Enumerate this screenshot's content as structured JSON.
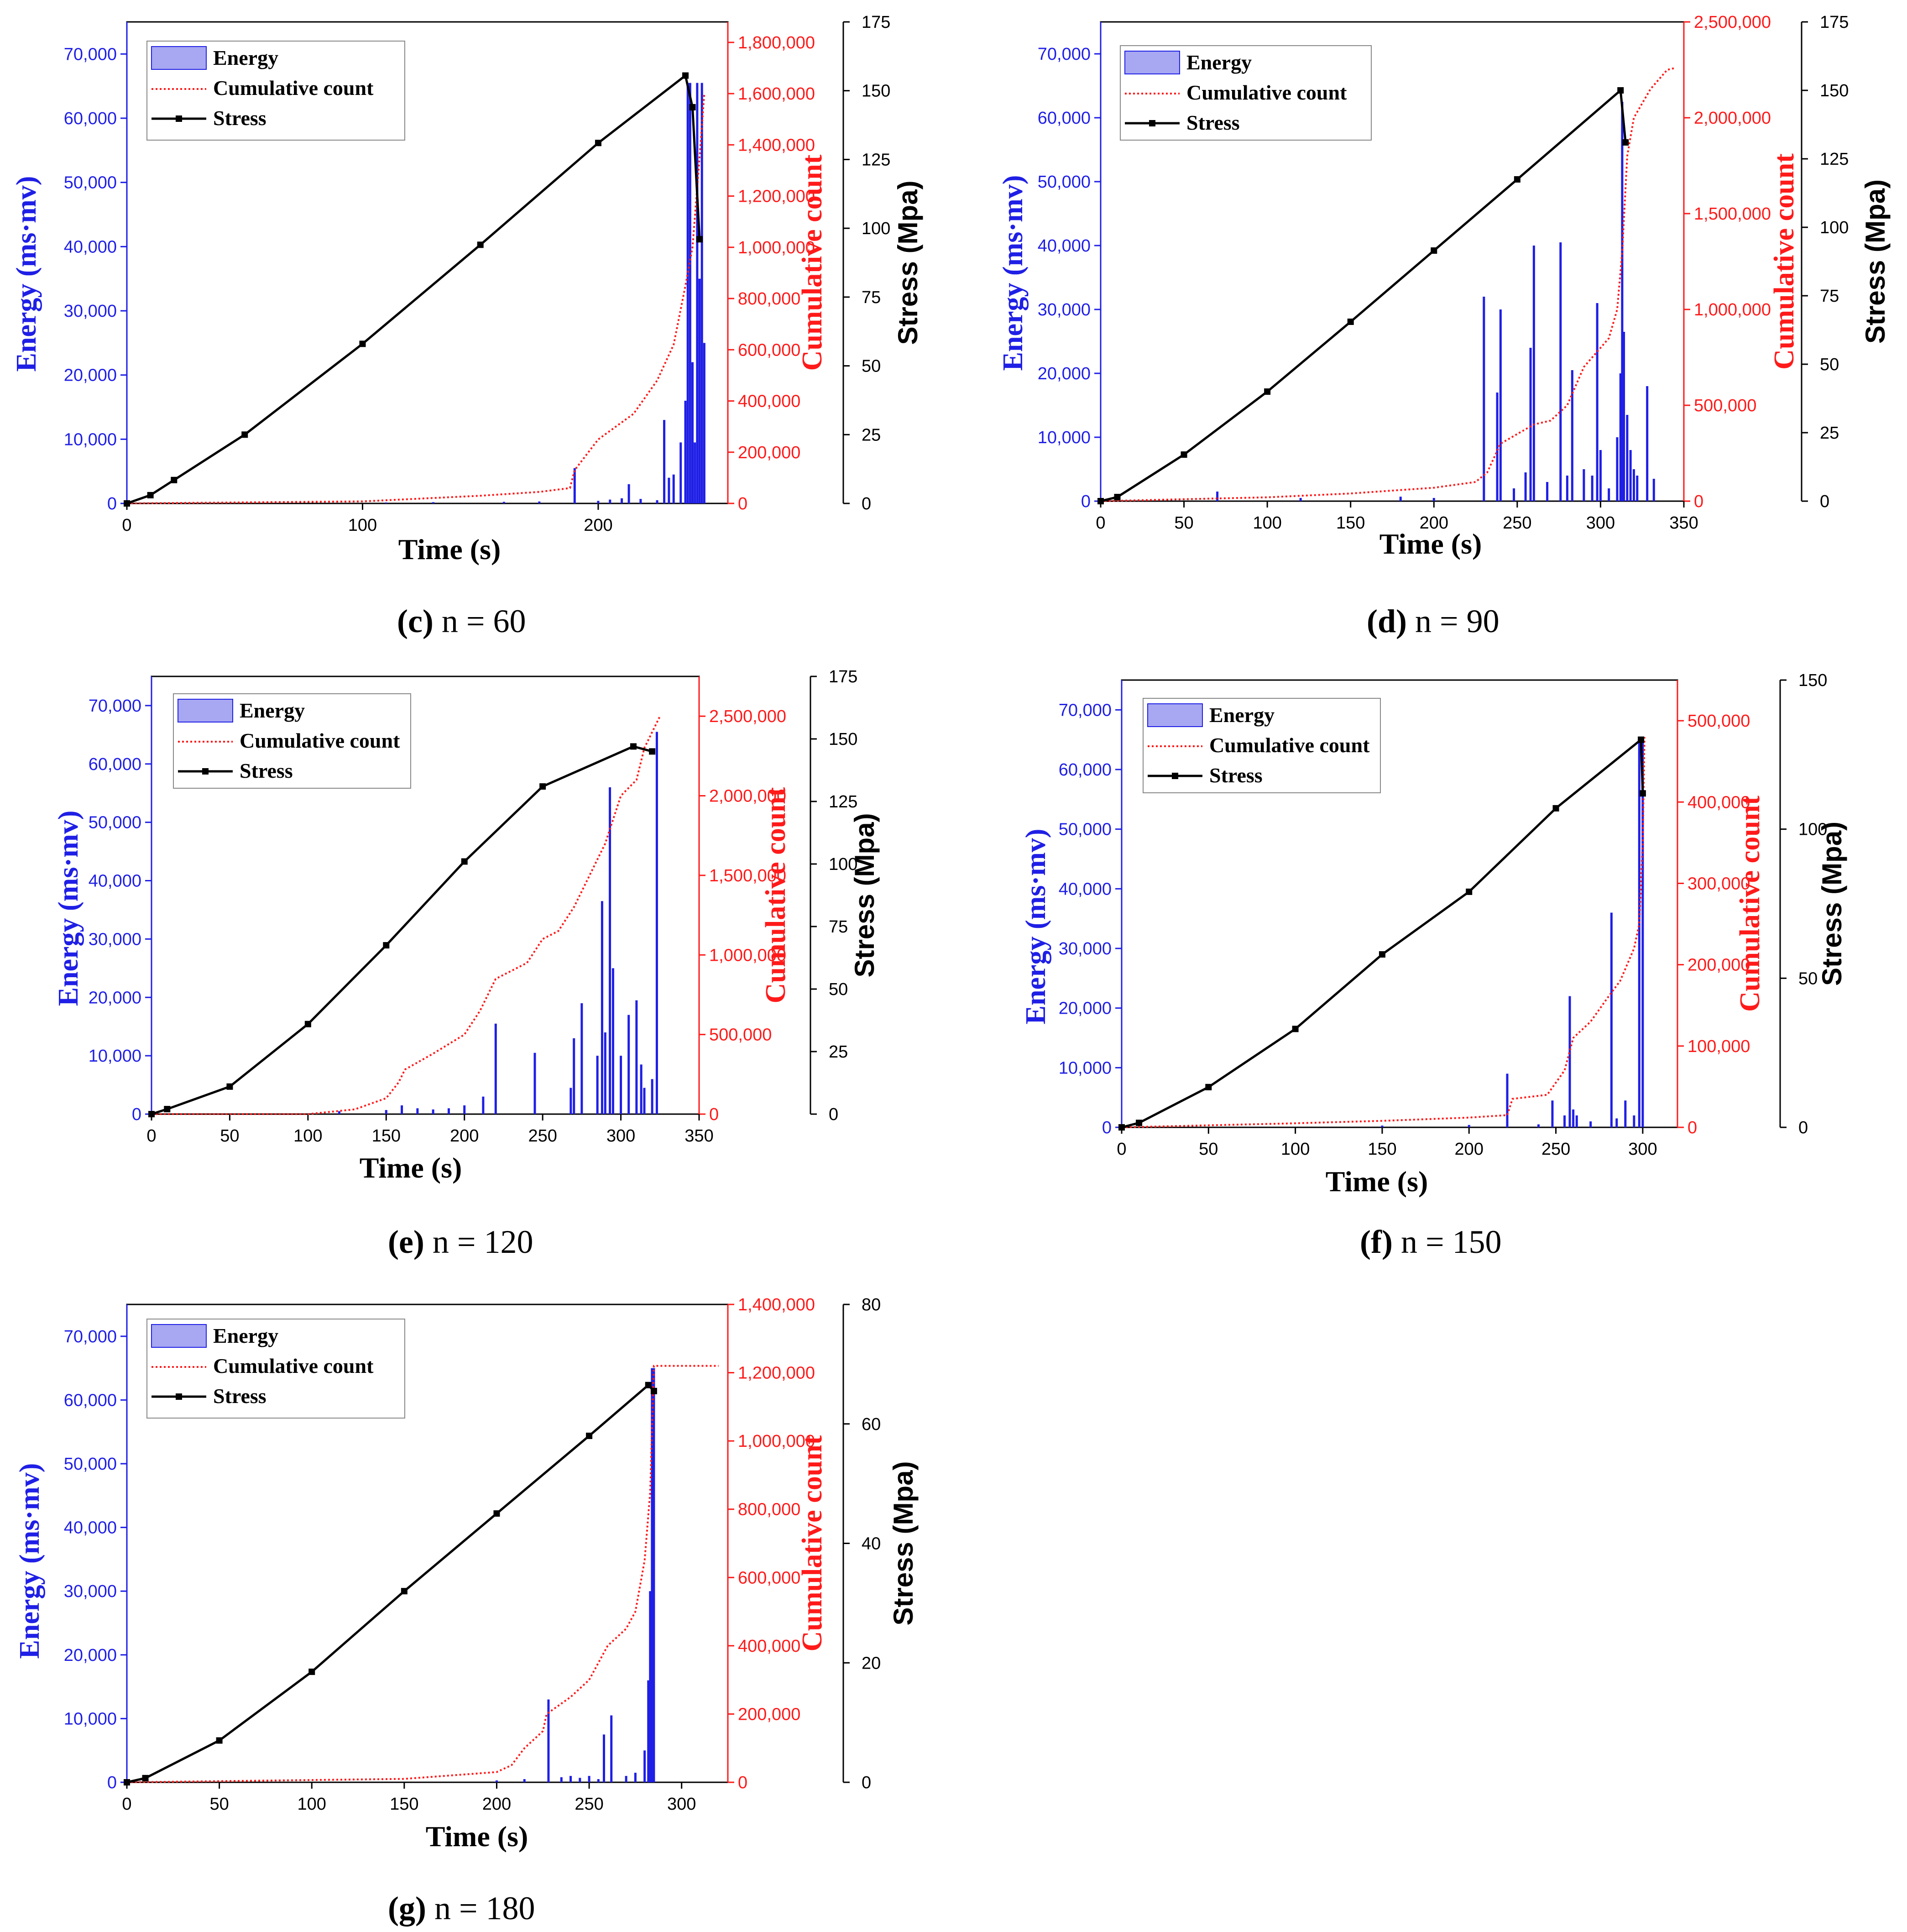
{
  "colors": {
    "energy": "#1f1fe6",
    "energy_fill": "#a7a7f2",
    "cumulative": "#ff1a1a",
    "stress": "#000000"
  },
  "legend": {
    "energy": "Energy",
    "cumulative": "Cumulative count",
    "stress": "Stress"
  },
  "chart_data": [
    {
      "id": "c",
      "type": "combo",
      "caption_letter": "(c)",
      "caption_text": " n = 60",
      "xlabel": "Time (s)",
      "ylabel_energy": "Energy (ms·mv)",
      "ylabel_count": "Cumulative count",
      "ylabel_stress": "Stress (Mpa)",
      "xlim": [
        0,
        255
      ],
      "xticks": [
        0,
        100,
        200
      ],
      "xtick_labels": [
        "0",
        "100",
        "200"
      ],
      "energy_lim": [
        0,
        75000
      ],
      "energy_ticks": [
        0,
        10000,
        20000,
        30000,
        40000,
        50000,
        60000,
        70000
      ],
      "energy_tick_labels": [
        "0",
        "10,000",
        "20,000",
        "30,000",
        "40,000",
        "50,000",
        "60,000",
        "70,000"
      ],
      "count_lim": [
        0,
        1880000
      ],
      "count_ticks": [
        0,
        200000,
        400000,
        600000,
        800000,
        1000000,
        1200000,
        1400000,
        1600000,
        1800000
      ],
      "count_tick_labels": [
        "0",
        "200,000",
        "400,000",
        "600,000",
        "800,000",
        "1,000,000",
        "1,200,000",
        "1,400,000",
        "1,600,000",
        "1,800,000"
      ],
      "stress_lim": [
        0,
        175
      ],
      "stress_ticks": [
        0,
        25,
        50,
        75,
        100,
        125,
        150,
        175
      ],
      "stress_tick_labels": [
        "0",
        "25",
        "50",
        "75",
        "100",
        "125",
        "150",
        "175"
      ],
      "stress": {
        "x": [
          0,
          10,
          20,
          50,
          100,
          150,
          200,
          237,
          240,
          243
        ],
        "y": [
          0,
          3,
          8.5,
          25,
          58,
          94,
          131,
          155.5,
          144,
          96
        ]
      },
      "cumulative": {
        "x": [
          0,
          100,
          150,
          175,
          188,
          190,
          200,
          215,
          225,
          232,
          237,
          240,
          243,
          245
        ],
        "y": [
          0,
          8000,
          30000,
          45000,
          60000,
          130000,
          250000,
          350000,
          480000,
          620000,
          850000,
          1000000,
          1350000,
          1600000
        ]
      },
      "energy": {
        "x": [
          110,
          130,
          160,
          175,
          190,
          200,
          205,
          210,
          213,
          218,
          225,
          228,
          230,
          232,
          235,
          237,
          238,
          239,
          240,
          241,
          242,
          243,
          244,
          245
        ],
        "y": [
          150,
          200,
          250,
          300,
          5500,
          400,
          600,
          800,
          3000,
          700,
          500,
          13000,
          4000,
          4500,
          9500,
          16000,
          65500,
          65500,
          22000,
          9500,
          65500,
          35000,
          65500,
          25000
        ]
      }
    },
    {
      "id": "d",
      "type": "combo",
      "caption_letter": "(d)",
      "caption_text": " n = 90",
      "xlabel": "Time (s)",
      "ylabel_energy": "Energy (ms·mv)",
      "ylabel_count": "Cumulative count",
      "ylabel_stress": "Stress (Mpa)",
      "xlim": [
        0,
        350
      ],
      "xticks": [
        0,
        50,
        100,
        150,
        200,
        250,
        300,
        350
      ],
      "xtick_labels": [
        "0",
        "50",
        "100",
        "150",
        "200",
        "250",
        "300",
        "350"
      ],
      "energy_lim": [
        0,
        75000
      ],
      "energy_ticks": [
        0,
        10000,
        20000,
        30000,
        40000,
        50000,
        60000,
        70000
      ],
      "energy_tick_labels": [
        "0",
        "10,000",
        "20,000",
        "30,000",
        "40,000",
        "50,000",
        "60,000",
        "70,000"
      ],
      "count_lim": [
        0,
        2500000
      ],
      "count_ticks": [
        0,
        500000,
        1000000,
        1500000,
        2000000,
        2500000
      ],
      "count_tick_labels": [
        "0",
        "500,000",
        "1,000,000",
        "1,500,000",
        "2,000,000",
        "2,500,000"
      ],
      "stress_lim": [
        0,
        175
      ],
      "stress_ticks": [
        0,
        25,
        50,
        75,
        100,
        125,
        150,
        175
      ],
      "stress_tick_labels": [
        "0",
        "25",
        "50",
        "75",
        "100",
        "125",
        "150",
        "175"
      ],
      "stress": {
        "x": [
          0,
          10,
          50,
          100,
          150,
          200,
          250,
          312,
          315
        ],
        "y": [
          0,
          1.5,
          17,
          40,
          65.5,
          91.5,
          117.5,
          150,
          131
        ]
      },
      "cumulative": {
        "x": [
          0,
          100,
          150,
          200,
          225,
          232,
          240,
          250,
          260,
          270,
          280,
          290,
          300,
          305,
          310,
          313,
          316,
          320,
          330,
          340,
          345
        ],
        "y": [
          0,
          20000,
          40000,
          70000,
          100000,
          150000,
          300000,
          350000,
          400000,
          420000,
          500000,
          700000,
          800000,
          850000,
          1000000,
          1300000,
          1800000,
          2000000,
          2150000,
          2250000,
          2260000
        ]
      },
      "energy": {
        "x": [
          70,
          120,
          180,
          200,
          230,
          238,
          240,
          248,
          255,
          258,
          260,
          268,
          276,
          280,
          283,
          290,
          295,
          298,
          300,
          305,
          310,
          312,
          313,
          314,
          316,
          318,
          320,
          322,
          328,
          332
        ],
        "y": [
          1500,
          500,
          700,
          500,
          32000,
          17000,
          30000,
          2000,
          4500,
          24000,
          40000,
          3000,
          40500,
          4000,
          20500,
          5000,
          4000,
          31000,
          8000,
          2000,
          10000,
          20000,
          62500,
          26500,
          13500,
          8000,
          5000,
          4000,
          18000,
          3500
        ]
      }
    },
    {
      "id": "e",
      "type": "combo",
      "caption_letter": "(e)",
      "caption_text": " n = 120",
      "xlabel": "Time (s)",
      "ylabel_energy": "Energy (ms·mv)",
      "ylabel_count": "Cumulative count",
      "ylabel_stress": "Stress (Mpa)",
      "xlim": [
        0,
        350
      ],
      "xticks": [
        0,
        50,
        100,
        150,
        200,
        250,
        300,
        350
      ],
      "xtick_labels": [
        "0",
        "50",
        "100",
        "150",
        "200",
        "250",
        "300",
        "350"
      ],
      "energy_lim": [
        0,
        75000
      ],
      "energy_ticks": [
        0,
        10000,
        20000,
        30000,
        40000,
        50000,
        60000,
        70000
      ],
      "energy_tick_labels": [
        "0",
        "10,000",
        "20,000",
        "30,000",
        "40,000",
        "50,000",
        "60,000",
        "70,000"
      ],
      "count_lim": [
        0,
        2750000
      ],
      "count_ticks": [
        0,
        500000,
        1000000,
        1500000,
        2000000,
        2500000
      ],
      "count_tick_labels": [
        "0",
        "500,000",
        "1,000,000",
        "1,500,000",
        "2,000,000",
        "2,500,000"
      ],
      "stress_lim": [
        0,
        175
      ],
      "stress_ticks": [
        0,
        25,
        50,
        75,
        100,
        125,
        150,
        175
      ],
      "stress_tick_labels": [
        "0",
        "25",
        "50",
        "75",
        "100",
        "125",
        "150",
        "175"
      ],
      "stress": {
        "x": [
          0,
          10,
          50,
          100,
          150,
          200,
          250,
          308,
          320
        ],
        "y": [
          0,
          2,
          11,
          36,
          67.5,
          101,
          131,
          147,
          145
        ]
      },
      "cumulative": {
        "x": [
          0,
          100,
          130,
          150,
          158,
          162,
          180,
          200,
          210,
          220,
          240,
          250,
          260,
          270,
          280,
          290,
          295,
          300,
          310,
          315,
          320,
          325
        ],
        "y": [
          0,
          0,
          30000,
          100000,
          200000,
          280000,
          380000,
          500000,
          650000,
          850000,
          950000,
          1100000,
          1150000,
          1300000,
          1500000,
          1700000,
          1850000,
          2000000,
          2100000,
          2300000,
          2400000,
          2500000
        ]
      },
      "energy": {
        "x": [
          120,
          150,
          160,
          170,
          180,
          190,
          200,
          212,
          220,
          245,
          268,
          270,
          275,
          285,
          288,
          290,
          293,
          295,
          300,
          305,
          310,
          313,
          315,
          320,
          323
        ],
        "y": [
          500,
          700,
          1500,
          1000,
          800,
          1000,
          1500,
          3000,
          15500,
          10500,
          4500,
          13000,
          19000,
          10000,
          36500,
          14000,
          56000,
          25000,
          10000,
          17000,
          19500,
          8500,
          4500,
          6000,
          65500
        ]
      }
    },
    {
      "id": "f",
      "type": "combo",
      "caption_letter": "(f)",
      "caption_text": " n = 150",
      "xlabel": "Time (s)",
      "ylabel_energy": "Energy (ms·mv)",
      "ylabel_count": "Cumulative count",
      "ylabel_stress": "Stress (Mpa)",
      "xlim": [
        0,
        320
      ],
      "xticks": [
        0,
        50,
        100,
        150,
        200,
        250,
        300
      ],
      "xtick_labels": [
        "0",
        "50",
        "100",
        "150",
        "200",
        "250",
        "300"
      ],
      "energy_lim": [
        0,
        75000
      ],
      "energy_ticks": [
        0,
        10000,
        20000,
        30000,
        40000,
        50000,
        60000,
        70000
      ],
      "energy_tick_labels": [
        "0",
        "10,000",
        "20,000",
        "30,000",
        "40,000",
        "50,000",
        "60,000",
        "70,000"
      ],
      "count_lim": [
        0,
        550000
      ],
      "count_ticks": [
        0,
        100000,
        200000,
        300000,
        400000,
        500000
      ],
      "count_tick_labels": [
        "0",
        "100,000",
        "200,000",
        "300,000",
        "400,000",
        "500,000"
      ],
      "stress_lim": [
        0,
        150
      ],
      "stress_ticks": [
        0,
        50,
        100,
        150
      ],
      "stress_tick_labels": [
        "0",
        "50",
        "100",
        "150"
      ],
      "stress": {
        "x": [
          0,
          10,
          50,
          100,
          150,
          200,
          250,
          299,
          300
        ],
        "y": [
          0,
          1.5,
          13.5,
          33,
          58,
          79,
          107,
          130,
          112
        ]
      },
      "cumulative": {
        "x": [
          0,
          100,
          150,
          200,
          222,
          225,
          245,
          255,
          260,
          270,
          280,
          287,
          295,
          298,
          300,
          301
        ],
        "y": [
          0,
          5000,
          8000,
          12000,
          15000,
          35000,
          40000,
          70000,
          110000,
          130000,
          160000,
          180000,
          220000,
          250000,
          350000,
          480000
        ]
      },
      "energy": {
        "x": [
          150,
          200,
          222,
          240,
          248,
          255,
          258,
          260,
          262,
          270,
          282,
          285,
          290,
          295,
          298,
          300
        ],
        "y": [
          300,
          400,
          9000,
          500,
          4500,
          2000,
          22000,
          3000,
          2000,
          1000,
          36000,
          1500,
          4500,
          2000,
          65500,
          65500
        ]
      }
    },
    {
      "id": "g",
      "type": "combo",
      "caption_letter": "(g)",
      "caption_text": " n = 180",
      "xlabel": "Time (s)",
      "ylabel_energy": "Energy (ms·mv)",
      "ylabel_count": "Cumulative count",
      "ylabel_stress": "Stress (Mpa)",
      "xlim": [
        0,
        325
      ],
      "xticks": [
        0,
        50,
        100,
        150,
        200,
        250,
        300
      ],
      "xtick_labels": [
        "0",
        "50",
        "100",
        "150",
        "200",
        "250",
        "300"
      ],
      "energy_lim": [
        0,
        75000
      ],
      "energy_ticks": [
        0,
        10000,
        20000,
        30000,
        40000,
        50000,
        60000,
        70000
      ],
      "energy_tick_labels": [
        "0",
        "10,000",
        "20,000",
        "30,000",
        "40,000",
        "50,000",
        "60,000",
        "70,000"
      ],
      "count_lim": [
        0,
        1400000
      ],
      "count_ticks": [
        0,
        200000,
        400000,
        600000,
        800000,
        1000000,
        1200000,
        1400000
      ],
      "count_tick_labels": [
        "0",
        "200,000",
        "400,000",
        "600,000",
        "800,000",
        "1,000,000",
        "1,200,000",
        "1,400,000"
      ],
      "stress_lim": [
        0,
        80
      ],
      "stress_ticks": [
        0,
        20,
        40,
        60,
        80
      ],
      "stress_tick_labels": [
        "0",
        "20",
        "40",
        "60",
        "80"
      ],
      "stress": {
        "x": [
          0,
          10,
          50,
          100,
          150,
          200,
          250,
          282,
          285
        ],
        "y": [
          0,
          0.7,
          7,
          18.5,
          32,
          45,
          58,
          66.5,
          65.5
        ]
      },
      "cumulative": {
        "x": [
          0,
          150,
          200,
          208,
          215,
          225,
          227,
          240,
          250,
          255,
          260,
          270,
          275,
          280,
          283,
          285,
          300,
          320
        ],
        "y": [
          0,
          10000,
          30000,
          50000,
          100000,
          150000,
          200000,
          250000,
          300000,
          350000,
          400000,
          450000,
          500000,
          650000,
          850000,
          1220000,
          1220000,
          1220000
        ]
      },
      "energy": {
        "x": [
          200,
          215,
          228,
          235,
          240,
          245,
          250,
          255,
          258,
          262,
          270,
          275,
          280,
          282,
          283,
          284,
          285
        ],
        "y": [
          300,
          500,
          13000,
          800,
          1000,
          700,
          1000,
          500,
          7500,
          10500,
          1000,
          1500,
          5000,
          16000,
          30000,
          65000,
          65000
        ]
      }
    }
  ]
}
